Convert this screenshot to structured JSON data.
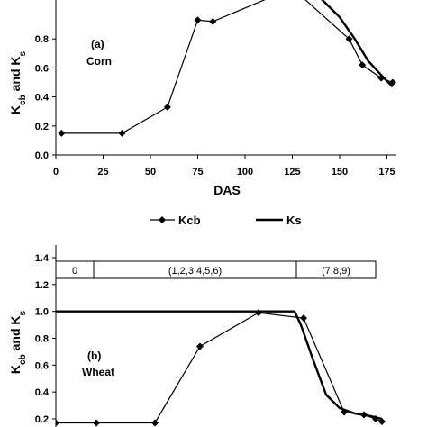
{
  "chart_data": [
    {
      "panel_label": "(a)",
      "panel_name": "Corn",
      "type": "line",
      "xlabel": "DAS",
      "ylabel_main": "K",
      "ylabel_sub1": "cb",
      "ylabel_mid": " and K",
      "ylabel_sub2": "s",
      "xlim": [
        0,
        180
      ],
      "ylim": [
        0.0,
        1.0
      ],
      "x_ticks": [
        0,
        25,
        50,
        75,
        100,
        125,
        150,
        175
      ],
      "y_ticks": [
        0.0,
        0.2,
        0.4,
        0.6,
        0.8
      ],
      "x_tick_labels": [
        "0",
        "25",
        "50",
        "75",
        "100",
        "125",
        "150",
        "175"
      ],
      "y_tick_labels": [
        "0.0",
        "0.2",
        "0.4",
        "0.6",
        "0.8"
      ],
      "series": [
        {
          "name": "Kcb",
          "x": [
            3,
            35,
            59,
            75,
            83,
            125,
            155,
            162,
            172,
            178
          ],
          "y": [
            0.15,
            0.15,
            0.33,
            0.93,
            0.92,
            1.15,
            0.8,
            0.62,
            0.53,
            0.5
          ]
        },
        {
          "name": "Ks",
          "x": [
            120,
            140,
            150,
            158,
            165,
            172,
            178
          ],
          "y": [
            1.15,
            1.08,
            0.95,
            0.8,
            0.65,
            0.55,
            0.47
          ]
        }
      ]
    },
    {
      "panel_label": "(b)",
      "panel_name": "Wheat",
      "type": "line",
      "ylabel_main": "K",
      "ylabel_sub1": "cb",
      "ylabel_mid": " and K",
      "ylabel_sub2": "s",
      "ylim": [
        0.0,
        1.4
      ],
      "y_ticks": [
        0.2,
        0.4,
        0.6,
        0.8,
        1.0,
        1.2,
        1.4
      ],
      "y_tick_labels": [
        "0.2",
        "0.4",
        "0.6",
        "0.8",
        "1.0",
        "1.2",
        "1.4"
      ],
      "stage_labels": [
        "0",
        "(1,2,3,4,5,6)",
        "(7,8,9)"
      ],
      "stage_bounds": [
        0,
        42,
        267,
        355
      ],
      "series": [
        {
          "name": "Kcb",
          "x": [
            0,
            45,
            110,
            160,
            225,
            275,
            320,
            342,
            355,
            362
          ],
          "y": [
            0.17,
            0.17,
            0.17,
            0.74,
            0.99,
            0.95,
            0.25,
            0.23,
            0.2,
            0.18
          ]
        },
        {
          "name": "Ks",
          "x": [
            0,
            265,
            272,
            285,
            300,
            315,
            332,
            350,
            362
          ],
          "y": [
            1.0,
            1.0,
            0.9,
            0.65,
            0.38,
            0.28,
            0.24,
            0.22,
            0.2
          ]
        }
      ]
    }
  ],
  "legend": {
    "kcb_label": "Kcb",
    "ks_label": "Ks"
  }
}
